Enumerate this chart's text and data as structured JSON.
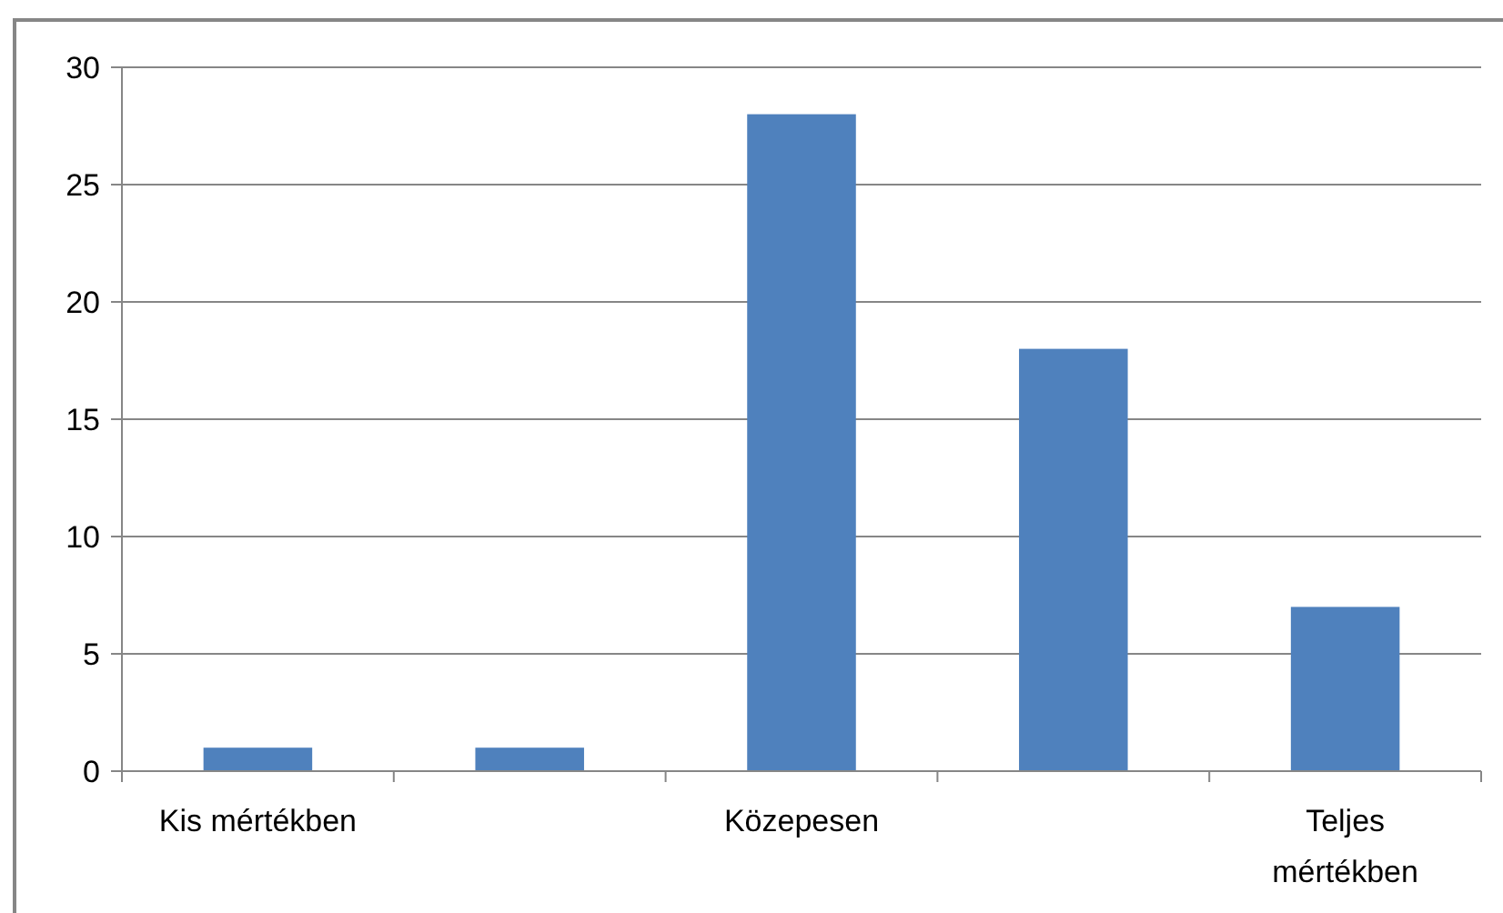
{
  "chart_data": {
    "type": "bar",
    "categories": [
      "Kis mértékben",
      null,
      "Közepesen",
      null,
      "Teljes mértékben"
    ],
    "values": [
      1,
      1,
      28,
      18,
      7
    ],
    "color": "#4f81bd",
    "ylim": [
      0,
      30
    ],
    "yticks": [
      0,
      5,
      10,
      15,
      20,
      25,
      30
    ],
    "grid": "y"
  }
}
